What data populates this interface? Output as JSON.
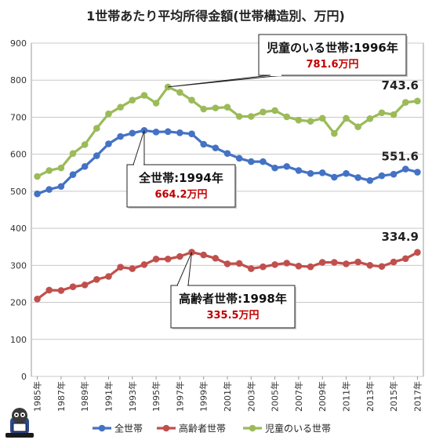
{
  "chart_data": {
    "type": "line",
    "title": "1世帯あたり平均所得金額(世帯構造別、万円)",
    "xlabel": "",
    "ylabel": "",
    "ylim": [
      0,
      900
    ],
    "yticks": [
      "0",
      "100",
      "200",
      "300",
      "400",
      "500",
      "600",
      "700",
      "800",
      "900"
    ],
    "grid": true,
    "legend_position": "bottom",
    "x": [
      "1985年",
      "1986年",
      "1987年",
      "1988年",
      "1989年",
      "1990年",
      "1991年",
      "1992年",
      "1993年",
      "1994年",
      "1995年",
      "1996年",
      "1997年",
      "1998年",
      "1999年",
      "2000年",
      "2001年",
      "2002年",
      "2003年",
      "2004年",
      "2005年",
      "2006年",
      "2007年",
      "2008年",
      "2009年",
      "2010年",
      "2011年",
      "2012年",
      "2013年",
      "2014年",
      "2015年",
      "2016年",
      "2017年"
    ],
    "x_tick_labels": [
      "1985年",
      "1987年",
      "1989年",
      "1991年",
      "1993年",
      "1995年",
      "1997年",
      "1999年",
      "2001年",
      "2003年",
      "2005年",
      "2007年",
      "2009年",
      "2011年",
      "2013年",
      "2015年",
      "2017年"
    ],
    "series": [
      {
        "name": "全世帯",
        "color": "#4472c4",
        "values": [
          493,
          505,
          513,
          545,
          567,
          596,
          628,
          648,
          657,
          664.2,
          660,
          661,
          658,
          655,
          627,
          617,
          602,
          589,
          580,
          580,
          563,
          567,
          556,
          548,
          550,
          538,
          548,
          537,
          529,
          542,
          546,
          560,
          551.6
        ]
      },
      {
        "name": "高齢者世帯",
        "color": "#c0504d",
        "values": [
          209,
          233,
          232,
          242,
          247,
          262,
          270,
          295,
          291,
          302,
          317,
          317,
          324,
          335.5,
          328,
          319,
          304,
          305,
          291,
          296,
          302,
          306,
          298,
          296,
          308,
          308,
          304,
          309,
          300,
          297,
          309,
          318,
          334.9
        ]
      },
      {
        "name": "児童のいる世帯",
        "color": "#9bbb59",
        "values": [
          540,
          556,
          563,
          602,
          626,
          670,
          709,
          727,
          746,
          759,
          738,
          781.6,
          767,
          746,
          722,
          725,
          727,
          702,
          702,
          714,
          718,
          701,
          692,
          689,
          697,
          656,
          697,
          674,
          696,
          712,
          707,
          740,
          743.6
        ]
      }
    ],
    "annotations": [
      {
        "title": "児童のいる世帯:1996年",
        "value": "781.6万円"
      },
      {
        "title": "全世帯:1994年",
        "value": "664.2万円"
      },
      {
        "title": "高齢者世帯:1998年",
        "value": "335.5万円"
      }
    ],
    "end_labels": [
      "743.6",
      "551.6",
      "334.9"
    ]
  }
}
